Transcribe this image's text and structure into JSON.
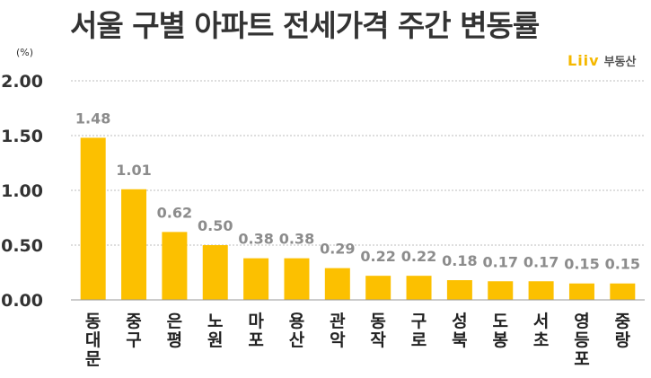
{
  "title": "서울 구별 아파트 전세가격 주간 변동률",
  "logo": {
    "mark": "Liiv",
    "text": "부동산",
    "icon": "liiv-logo-icon"
  },
  "chart_data": {
    "type": "bar",
    "title": "서울 구별 아파트 전세가격 주간 변동률",
    "unit_label": "(%)",
    "ylim": [
      0,
      2.0
    ],
    "yticks": [
      "0.00",
      "0.50",
      "1.00",
      "1.50",
      "2.00"
    ],
    "ytick_values": [
      0,
      0.5,
      1.0,
      1.5,
      2.0
    ],
    "grid": true,
    "bar_color": "#fcc000",
    "categories": [
      "동대문",
      "중구",
      "은평",
      "노원",
      "마포",
      "용산",
      "관악",
      "동작",
      "구로",
      "성북",
      "도봉",
      "서초",
      "영등포",
      "중랑"
    ],
    "values": [
      1.48,
      1.01,
      0.62,
      0.5,
      0.38,
      0.38,
      0.29,
      0.22,
      0.22,
      0.18,
      0.17,
      0.17,
      0.15,
      0.15
    ],
    "data_labels": [
      "1.48",
      "1.01",
      "0.62",
      "0.50",
      "0.38",
      "0.38",
      "0.29",
      "0.22",
      "0.22",
      "0.18",
      "0.17",
      "0.17",
      "0.15",
      "0.15"
    ]
  }
}
